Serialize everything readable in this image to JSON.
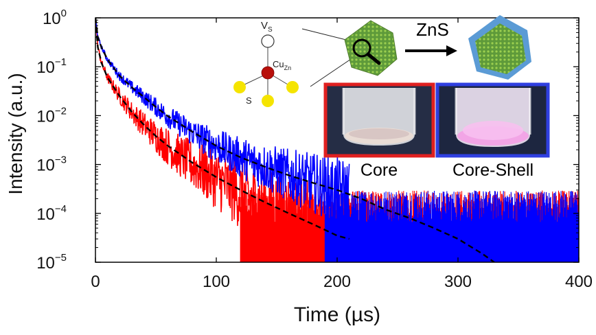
{
  "chart_data": {
    "type": "line",
    "xlabel": "Time (µs)",
    "ylabel": "Intensity (a.u.)",
    "xlim": [
      0,
      400
    ],
    "ylim": [
      1e-05,
      1
    ],
    "yscale": "log",
    "x_ticks": [
      {
        "value": 0,
        "label": "0"
      },
      {
        "value": 100,
        "label": "100"
      },
      {
        "value": 200,
        "label": "200"
      },
      {
        "value": 300,
        "label": "300"
      },
      {
        "value": 400,
        "label": "400"
      }
    ],
    "y_ticks": [
      {
        "value": 1,
        "base": "10",
        "exp": "0"
      },
      {
        "value": 0.1,
        "base": "10",
        "exp": "−1"
      },
      {
        "value": 0.01,
        "base": "10",
        "exp": "−2"
      },
      {
        "value": 0.001,
        "base": "10",
        "exp": "−3"
      },
      {
        "value": 0.0001,
        "base": "10",
        "exp": "−4"
      },
      {
        "value": 1e-05,
        "base": "10",
        "exp": "−5"
      }
    ],
    "grid": false,
    "series": [
      {
        "color": "#ff0000",
        "noise_floor": 0.00012,
        "x": [
          0,
          2,
          5,
          10,
          20,
          30,
          40,
          50,
          60,
          70,
          80,
          90,
          100,
          110,
          120,
          130,
          140,
          150,
          160,
          170,
          180
        ],
        "y": [
          1.0,
          0.25,
          0.12,
          0.06,
          0.025,
          0.012,
          0.0065,
          0.0038,
          0.0023,
          0.0015,
          0.001,
          0.0007,
          0.0005,
          0.00035,
          0.00025,
          0.00018,
          0.00013,
          0.0001,
          8e-05,
          6e-05,
          5e-05
        ]
      },
      {
        "color": "#0000ff",
        "noise_floor": 0.00012,
        "x": [
          0,
          2,
          5,
          10,
          20,
          30,
          40,
          50,
          60,
          70,
          80,
          90,
          100,
          110,
          120,
          130,
          140,
          150,
          160,
          170,
          180,
          190,
          200,
          210
        ],
        "y": [
          1.0,
          0.4,
          0.25,
          0.14,
          0.065,
          0.038,
          0.024,
          0.015,
          0.0095,
          0.0065,
          0.0045,
          0.0033,
          0.0024,
          0.0018,
          0.0014,
          0.0011,
          0.0009,
          0.00073,
          0.0006,
          0.0005,
          0.00042,
          0.00035,
          0.0003,
          0.00025
        ]
      }
    ],
    "fits": [
      {
        "color": "#000000",
        "style": "dashed",
        "x": [
          0,
          2,
          5,
          10,
          20,
          30,
          40,
          50,
          60,
          80,
          100,
          120,
          140,
          160,
          180,
          200,
          210
        ],
        "y": [
          1.0,
          0.25,
          0.12,
          0.06,
          0.025,
          0.012,
          0.0065,
          0.0038,
          0.0024,
          0.0011,
          0.00055,
          0.0003,
          0.00017,
          0.0001,
          6e-05,
          3.5e-05,
          3e-05
        ]
      },
      {
        "color": "#000000",
        "style": "dashed",
        "x": [
          0,
          2,
          5,
          10,
          20,
          30,
          40,
          50,
          60,
          80,
          100,
          120,
          140,
          160,
          180,
          200,
          220,
          240,
          260,
          280,
          300,
          320,
          330
        ],
        "y": [
          1.0,
          0.4,
          0.25,
          0.14,
          0.065,
          0.038,
          0.024,
          0.015,
          0.0097,
          0.0047,
          0.0024,
          0.0014,
          0.0009,
          0.0006,
          0.00042,
          0.0003,
          0.0002,
          0.00012,
          8e-05,
          5e-05,
          3e-05,
          1.5e-05,
          1e-05
        ]
      }
    ]
  },
  "inset": {
    "defect_labels": {
      "vacancy_base": "V",
      "vacancy_sub": "S",
      "cu_base": "Cu",
      "cu_sub": "Zn",
      "sulfur": "S"
    },
    "arrow_label": "ZnS",
    "photo_labels": [
      "Core",
      "Core-Shell"
    ],
    "colors": {
      "nanocrystal": "#6aa84f",
      "shell": "#5b9bd5",
      "core_frame": "#e02020",
      "shell_frame": "#2f3fe0",
      "sulfur_atom": "#f5e400",
      "copper_atom": "#b80f0a"
    }
  }
}
